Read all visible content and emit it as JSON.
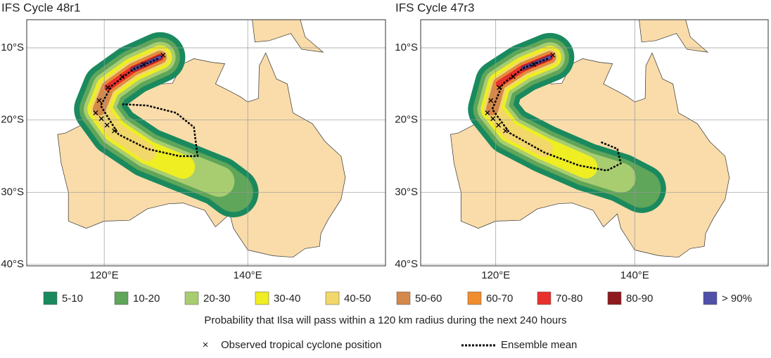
{
  "map": {
    "lon_range": [
      109.2,
      159.2
    ],
    "lat_range": [
      -6.1,
      -40.2
    ]
  },
  "panels": [
    {
      "title": "IFS Cycle 48r1",
      "lat_ticks": [
        {
          "value": -10,
          "label": "10°S"
        },
        {
          "value": -20,
          "label": "20°S"
        },
        {
          "value": -30,
          "label": "30°S"
        },
        {
          "value": -40,
          "label": "40°S"
        }
      ],
      "lon_ticks": [
        {
          "value": 120,
          "label": "120°E"
        },
        {
          "value": 140,
          "label": "140°E"
        }
      ]
    },
    {
      "title": "IFS Cycle 47r3",
      "lat_ticks": [
        {
          "value": -10,
          "label": "10°S"
        },
        {
          "value": -20,
          "label": "20°S"
        },
        {
          "value": -30,
          "label": "30°S"
        },
        {
          "value": -40,
          "label": "40°S"
        }
      ],
      "lon_ticks": [
        {
          "value": 120,
          "label": "120°E"
        },
        {
          "value": 140,
          "label": "140°E"
        }
      ]
    }
  ],
  "legend": {
    "items": [
      {
        "label": "5-10",
        "color": "#1a8a5e"
      },
      {
        "label": "10-20",
        "color": "#5fa55a"
      },
      {
        "label": "20-30",
        "color": "#a8cd70"
      },
      {
        "label": "30-40",
        "color": "#eeee22"
      },
      {
        "label": "40-50",
        "color": "#f2d76b"
      },
      {
        "label": "50-60",
        "color": "#d4884a"
      },
      {
        "label": "60-70",
        "color": "#f08d2e"
      },
      {
        "label": "70-80",
        "color": "#e8302c"
      },
      {
        "label": "80-90",
        "color": "#8e1a1e"
      },
      {
        "label": "> 90%",
        "color": "#5050a8"
      }
    ],
    "caption": "Probability that Ilsa will pass within a 120 km radius during the next 240 hours",
    "observed": "Observed tropical cyclone position",
    "mean": "Ensemble mean"
  }
}
